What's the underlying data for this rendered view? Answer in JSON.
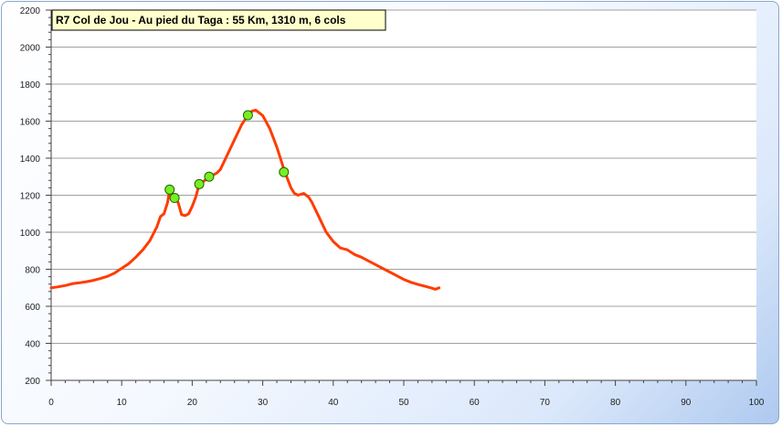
{
  "chart_data": {
    "type": "line",
    "title": "R7 Col de Jou - Au pied du Taga : 55 Km, 1310 m, 6 cols",
    "xlabel": "",
    "ylabel": "",
    "xlim": [
      0,
      100
    ],
    "ylim": [
      200,
      2200
    ],
    "x_ticks": [
      0,
      10,
      20,
      30,
      40,
      50,
      60,
      70,
      80,
      90,
      100
    ],
    "y_ticks": [
      200,
      400,
      600,
      800,
      1000,
      1200,
      1400,
      1600,
      1800,
      2000,
      2200
    ],
    "grid": "horizontal",
    "legend": "none",
    "colors": {
      "line": "#ff3c00",
      "marker_fill": "#77ee22",
      "marker_stroke": "#1f6600",
      "title_bg": "#ffffcc"
    },
    "series": [
      {
        "values": [
          [
            0,
            700
          ],
          [
            1,
            705
          ],
          [
            2,
            712
          ],
          [
            3,
            722
          ],
          [
            4,
            727
          ],
          [
            5,
            733
          ],
          [
            6,
            740
          ],
          [
            7,
            750
          ],
          [
            8,
            762
          ],
          [
            9,
            780
          ],
          [
            10,
            805
          ],
          [
            11,
            830
          ],
          [
            12,
            865
          ],
          [
            13,
            905
          ],
          [
            14,
            955
          ],
          [
            15,
            1030
          ],
          [
            15.5,
            1085
          ],
          [
            16,
            1100
          ],
          [
            16.5,
            1160
          ],
          [
            16.8,
            1230
          ],
          [
            17.5,
            1195
          ],
          [
            18,
            1160
          ],
          [
            18.5,
            1095
          ],
          [
            19,
            1090
          ],
          [
            19.5,
            1100
          ],
          [
            20,
            1140
          ],
          [
            20.5,
            1190
          ],
          [
            21,
            1260
          ],
          [
            21.8,
            1280
          ],
          [
            22.4,
            1300
          ],
          [
            23,
            1310
          ],
          [
            23.5,
            1320
          ],
          [
            24,
            1340
          ],
          [
            25,
            1420
          ],
          [
            26,
            1500
          ],
          [
            27,
            1580
          ],
          [
            27.9,
            1632
          ],
          [
            28.5,
            1655
          ],
          [
            29,
            1660
          ],
          [
            30,
            1630
          ],
          [
            31,
            1560
          ],
          [
            32,
            1460
          ],
          [
            33,
            1340
          ],
          [
            33.5,
            1290
          ],
          [
            34,
            1240
          ],
          [
            34.5,
            1210
          ],
          [
            35,
            1200
          ],
          [
            35.8,
            1210
          ],
          [
            36.5,
            1190
          ],
          [
            37,
            1160
          ],
          [
            38,
            1080
          ],
          [
            39,
            1000
          ],
          [
            40,
            950
          ],
          [
            41,
            915
          ],
          [
            42,
            905
          ],
          [
            43,
            880
          ],
          [
            44,
            865
          ],
          [
            45,
            845
          ],
          [
            46,
            825
          ],
          [
            47,
            805
          ],
          [
            48,
            785
          ],
          [
            49,
            765
          ],
          [
            50,
            745
          ],
          [
            51,
            730
          ],
          [
            52,
            718
          ],
          [
            53,
            708
          ],
          [
            54,
            698
          ],
          [
            54.5,
            692
          ],
          [
            55,
            700
          ]
        ]
      }
    ],
    "markers": [
      [
        16.8,
        1230
      ],
      [
        17.5,
        1185
      ],
      [
        21,
        1260
      ],
      [
        22.4,
        1300
      ],
      [
        27.9,
        1632
      ],
      [
        33,
        1325
      ]
    ]
  }
}
